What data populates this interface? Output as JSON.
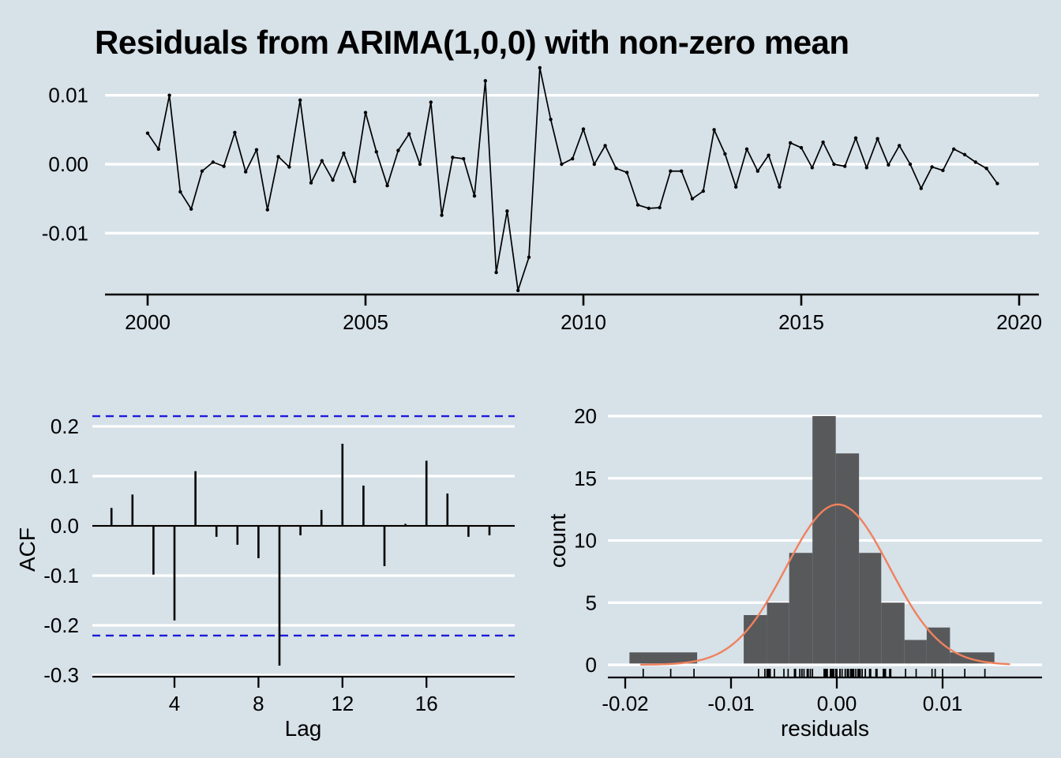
{
  "title": "Residuals from ARIMA(1,0,0) with non-zero mean",
  "colors": {
    "background": "#D6E1E8",
    "grid": "#FFFFFF",
    "series": "#000000",
    "axis": "#000000",
    "text": "#000000",
    "hist_bar": "#58595B",
    "normal_curve": "#F0815E",
    "conf_line": "#1C1CD9"
  },
  "chart_data": [
    {
      "id": "residuals_time_series",
      "type": "line",
      "x_start": 2000,
      "x_step": 0.25,
      "values": [
        0.0045,
        0.0022,
        0.01,
        -0.004,
        -0.0065,
        -0.001,
        0.0003,
        -0.0003,
        0.0046,
        -0.0011,
        0.0021,
        -0.0066,
        0.0011,
        -0.0004,
        0.0093,
        -0.0027,
        0.0005,
        -0.0023,
        0.0016,
        -0.0025,
        0.0075,
        0.0018,
        -0.0031,
        0.002,
        0.0044,
        0.0,
        0.009,
        -0.0074,
        0.001,
        0.0008,
        -0.0046,
        0.0121,
        -0.0157,
        -0.0068,
        -0.0183,
        -0.0135,
        0.014,
        0.0065,
        0.0,
        0.0008,
        0.0051,
        0.0,
        0.0027,
        -0.0006,
        -0.0012,
        -0.0059,
        -0.0064,
        -0.0063,
        -0.001,
        -0.001,
        -0.005,
        -0.0039,
        0.005,
        0.0015,
        -0.0033,
        0.0022,
        -0.001,
        0.0013,
        -0.0033,
        0.0031,
        0.0024,
        -0.0005,
        0.0032,
        0.0,
        -0.0003,
        0.0038,
        -0.0005,
        0.0037,
        -0.0001,
        0.0027,
        0.0,
        -0.0035,
        -0.0004,
        -0.0009,
        0.0022,
        0.0014,
        0.0003,
        -0.0006,
        -0.0028
      ],
      "x_ticks": {
        "values": [
          2000,
          2005,
          2010,
          2015,
          2020
        ],
        "labels": [
          "2000",
          "2005",
          "2010",
          "2015",
          "2020"
        ]
      },
      "y_ticks": {
        "values": [
          0.01,
          0.0,
          -0.01
        ],
        "labels": [
          "0.01",
          "0.00",
          "-0.01"
        ]
      },
      "xlim": [
        1999.0,
        2020.45
      ],
      "ylim": [
        -0.019,
        0.0145
      ],
      "xlabel": "",
      "ylabel": "",
      "grid": true,
      "marker": "point"
    },
    {
      "id": "acf",
      "type": "bar",
      "lags": [
        1,
        2,
        3,
        4,
        5,
        6,
        7,
        8,
        9,
        10,
        11,
        12,
        13,
        14,
        15,
        16,
        17,
        18,
        19
      ],
      "values": [
        0.036,
        0.063,
        -0.098,
        -0.19,
        0.11,
        -0.022,
        -0.038,
        -0.065,
        -0.281,
        -0.019,
        0.032,
        0.165,
        0.081,
        -0.081,
        0.004,
        0.131,
        0.065,
        -0.022,
        -0.019
      ],
      "conf_limit": 0.2205,
      "x_ticks": {
        "values": [
          4,
          8,
          12,
          16
        ],
        "labels": [
          "4",
          "8",
          "12",
          "16"
        ]
      },
      "y_ticks": {
        "values": [
          0.2,
          0.1,
          0.0,
          -0.1,
          -0.2,
          -0.3
        ],
        "labels": [
          "0.2",
          "0.1",
          "0.0",
          "-0.1",
          "-0.2",
          "-0.3"
        ]
      },
      "xlim": [
        0.1,
        19.9
      ],
      "ylim": [
        -0.3,
        0.235
      ],
      "xlabel": "Lag",
      "ylabel": "ACF",
      "grid": true
    },
    {
      "id": "residuals_histogram",
      "type": "histogram",
      "bars": [
        [
          -0.0196,
          -0.0132,
          1
        ],
        [
          -0.0088,
          -0.0066,
          4
        ],
        [
          -0.0066,
          -0.0045,
          5
        ],
        [
          -0.0045,
          -0.0023,
          9
        ],
        [
          -0.0023,
          -0.0001,
          20
        ],
        [
          -0.0001,
          0.0021,
          17
        ],
        [
          0.0021,
          0.0042,
          9
        ],
        [
          0.0042,
          0.0064,
          5
        ],
        [
          0.0064,
          0.0085,
          2
        ],
        [
          0.0085,
          0.0107,
          3
        ],
        [
          0.0107,
          0.0149,
          1
        ]
      ],
      "normal_curve": {
        "mean": 0.0001,
        "sd": 0.0049,
        "peak": 12.9,
        "range": [
          -0.0185,
          0.0166
        ]
      },
      "rug": true,
      "x_ticks": {
        "values": [
          -0.02,
          -0.01,
          0.0,
          0.01
        ],
        "labels": [
          "-0.02",
          "-0.01",
          "0.00",
          "0.01"
        ]
      },
      "y_ticks": {
        "values": [
          0,
          5,
          10,
          15,
          20
        ],
        "labels": [
          "0",
          "5",
          "10",
          "15",
          "20"
        ]
      },
      "xlim": [
        -0.0216,
        0.0194
      ],
      "ylim": [
        0,
        21
      ],
      "xlabel": "residuals",
      "ylabel": "count",
      "grid": true
    }
  ]
}
